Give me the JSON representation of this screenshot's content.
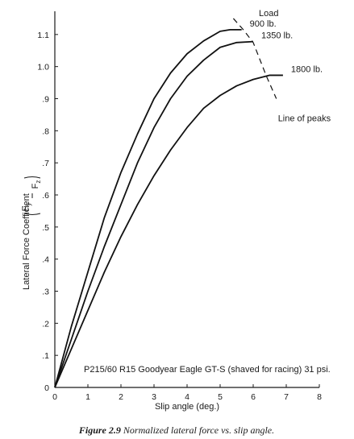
{
  "chart_data": {
    "type": "line",
    "title": "",
    "xlabel": "Slip angle (deg.)",
    "ylabel": "Lateral Force Coefficient",
    "ylabel_fraction": {
      "numerator": "F",
      "numerator_sub": "y",
      "denominator": "F",
      "denominator_sub": "z"
    },
    "xlim": [
      0,
      8
    ],
    "ylim": [
      0,
      1.2
    ],
    "x_ticks": [
      0,
      1,
      2,
      3,
      4,
      5,
      6,
      7,
      8
    ],
    "x_tick_labels": [
      "0",
      "1",
      "2",
      "3",
      "4",
      "5",
      "6",
      "7",
      "8"
    ],
    "y_ticks": [
      0,
      0.1,
      0.2,
      0.3,
      0.4,
      0.5,
      0.6,
      0.7,
      0.8,
      0.9,
      1.0,
      1.1
    ],
    "y_tick_labels": [
      "0",
      ".1",
      ".2",
      ".3",
      ".4",
      ".5",
      ".6",
      ".7",
      ".8",
      ".9",
      "1.0",
      "1.1"
    ],
    "grid": false,
    "legend": "none",
    "annotation": "P215/60 R15 Goodyear Eagle GT-S (shaved for racing) 31 psi.",
    "load_header": "Load",
    "series": [
      {
        "name": "900 lb.",
        "x": [
          0,
          0.5,
          1,
          1.5,
          2,
          2.5,
          3,
          3.5,
          4,
          4.5,
          5,
          5.3,
          5.65
        ],
        "y": [
          0,
          0.19,
          0.36,
          0.53,
          0.67,
          0.79,
          0.9,
          0.98,
          1.04,
          1.08,
          1.11,
          1.115,
          1.115
        ]
      },
      {
        "name": "1350 lb.",
        "x": [
          0,
          0.5,
          1,
          1.5,
          2,
          2.5,
          3,
          3.5,
          4,
          4.5,
          5,
          5.5,
          6.0
        ],
        "y": [
          0,
          0.15,
          0.3,
          0.44,
          0.57,
          0.7,
          0.81,
          0.9,
          0.97,
          1.02,
          1.06,
          1.075,
          1.078
        ]
      },
      {
        "name": "1800 lb.",
        "x": [
          0,
          0.5,
          1,
          1.5,
          2,
          2.5,
          3,
          3.5,
          4,
          4.5,
          5,
          5.5,
          6,
          6.5,
          6.9
        ],
        "y": [
          0,
          0.12,
          0.24,
          0.36,
          0.47,
          0.57,
          0.66,
          0.74,
          0.81,
          0.87,
          0.91,
          0.94,
          0.96,
          0.973,
          0.973
        ]
      }
    ],
    "peak_line": {
      "label": "Line of peaks",
      "x": [
        5.4,
        5.7,
        6.0,
        6.4,
        6.7
      ],
      "y": [
        1.15,
        1.115,
        1.075,
        0.97,
        0.9
      ]
    }
  },
  "caption": {
    "figure_label": "Figure 2.9",
    "text": "Normalized lateral force vs. slip angle."
  }
}
